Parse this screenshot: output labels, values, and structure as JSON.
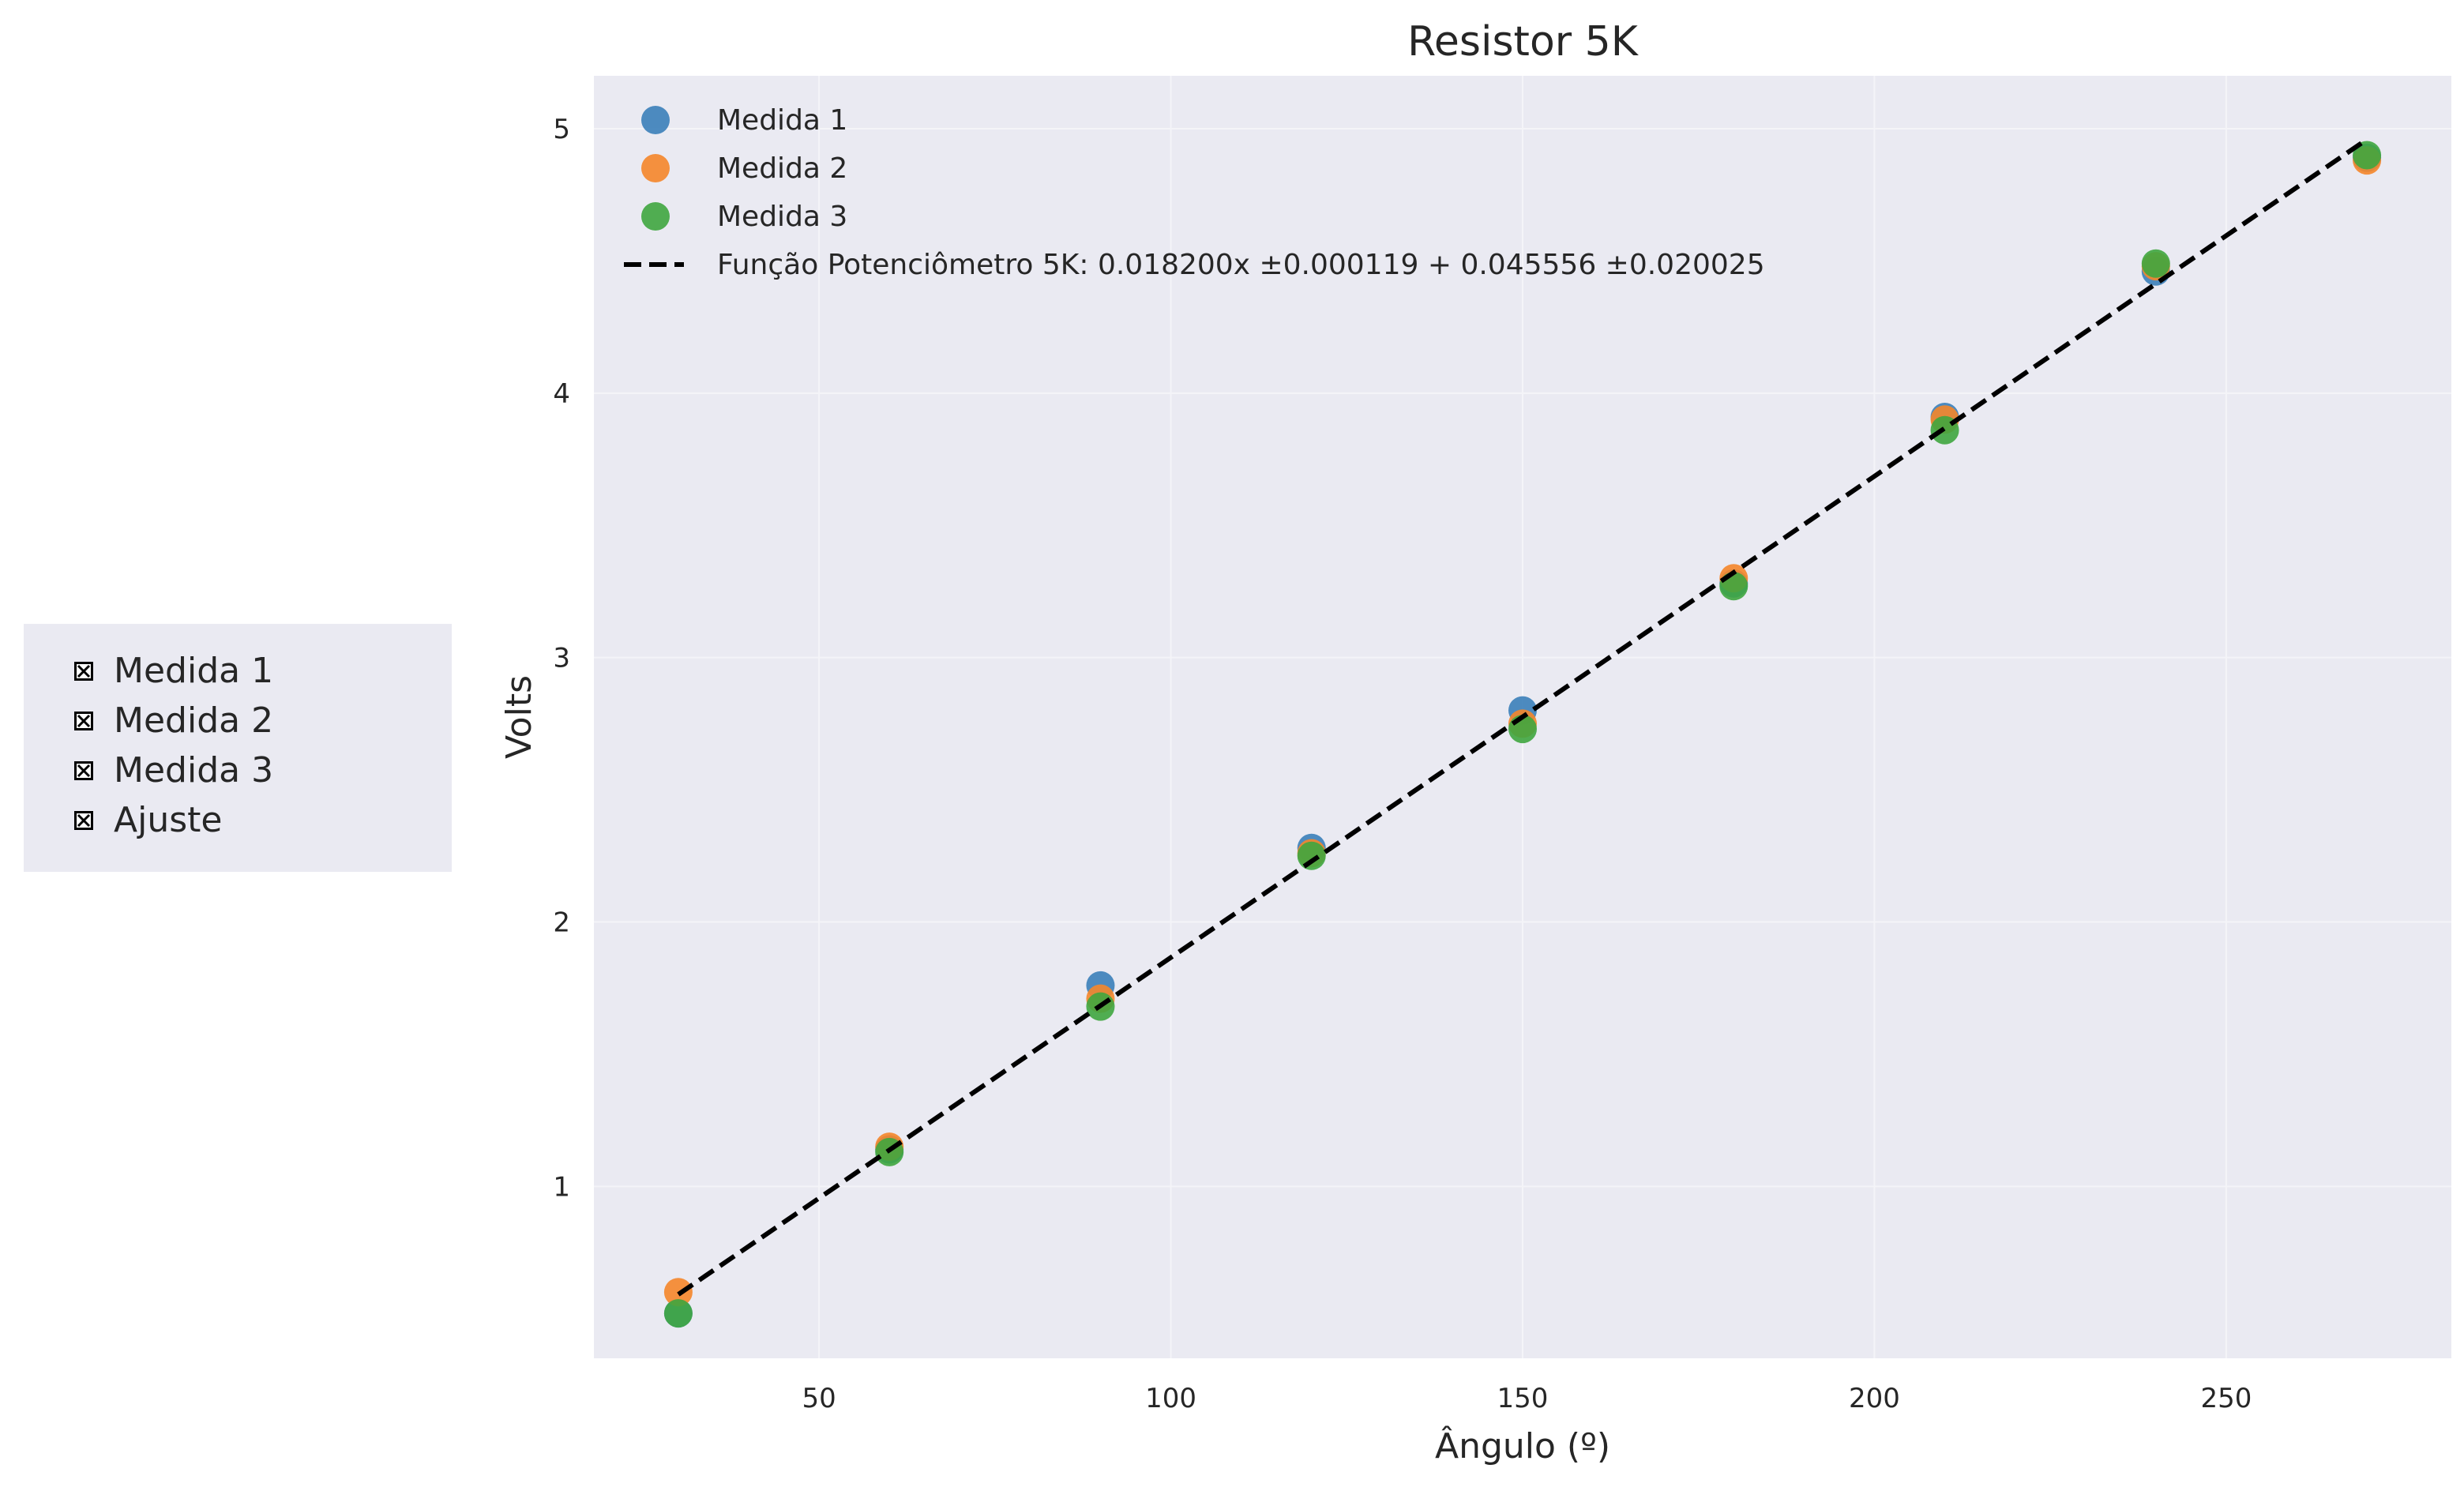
{
  "checkboxes": [
    {
      "label": "Medida 1",
      "checked": true
    },
    {
      "label": "Medida 2",
      "checked": true
    },
    {
      "label": "Medida 3",
      "checked": true
    },
    {
      "label": "Ajuste",
      "checked": true
    }
  ],
  "colors": {
    "background": "#eaeaf2",
    "grid": "#f4f4f8",
    "medida1": "#3b7fb9",
    "medida2": "#f5862a",
    "medida3": "#3fa63f",
    "fit": "#000000"
  },
  "chart_data": {
    "type": "scatter",
    "title": "Resistor 5K",
    "xlabel": "Ângulo (º)",
    "ylabel": "Volts",
    "xlim": [
      18.0,
      282.0
    ],
    "ylim": [
      0.35,
      5.2
    ],
    "xticks": [
      50,
      100,
      150,
      200,
      250
    ],
    "yticks": [
      1,
      2,
      3,
      4,
      5
    ],
    "grid": true,
    "legend_position": "top-left",
    "x": [
      30,
      60,
      90,
      120,
      150,
      180,
      210,
      240,
      270
    ],
    "series": [
      {
        "name": "Medida 1",
        "color_key": "medida1",
        "values": [
          0.52,
          1.14,
          1.76,
          2.28,
          2.8,
          3.28,
          3.91,
          4.46,
          4.89
        ]
      },
      {
        "name": "Medida 2",
        "color_key": "medida2",
        "values": [
          0.6,
          1.15,
          1.71,
          2.26,
          2.75,
          3.3,
          3.9,
          4.48,
          4.88
        ]
      },
      {
        "name": "Medida 3",
        "color_key": "medida3",
        "values": [
          0.52,
          1.13,
          1.68,
          2.25,
          2.73,
          3.27,
          3.86,
          4.49,
          4.9
        ]
      }
    ],
    "fit": {
      "name": "Função Potenciômetro 5K: 0.018200x ±0.000119 + 0.045556 ±0.020025",
      "slope": 0.0182,
      "intercept": 0.045556,
      "x_range": [
        30,
        270
      ],
      "style": "dashed"
    }
  }
}
